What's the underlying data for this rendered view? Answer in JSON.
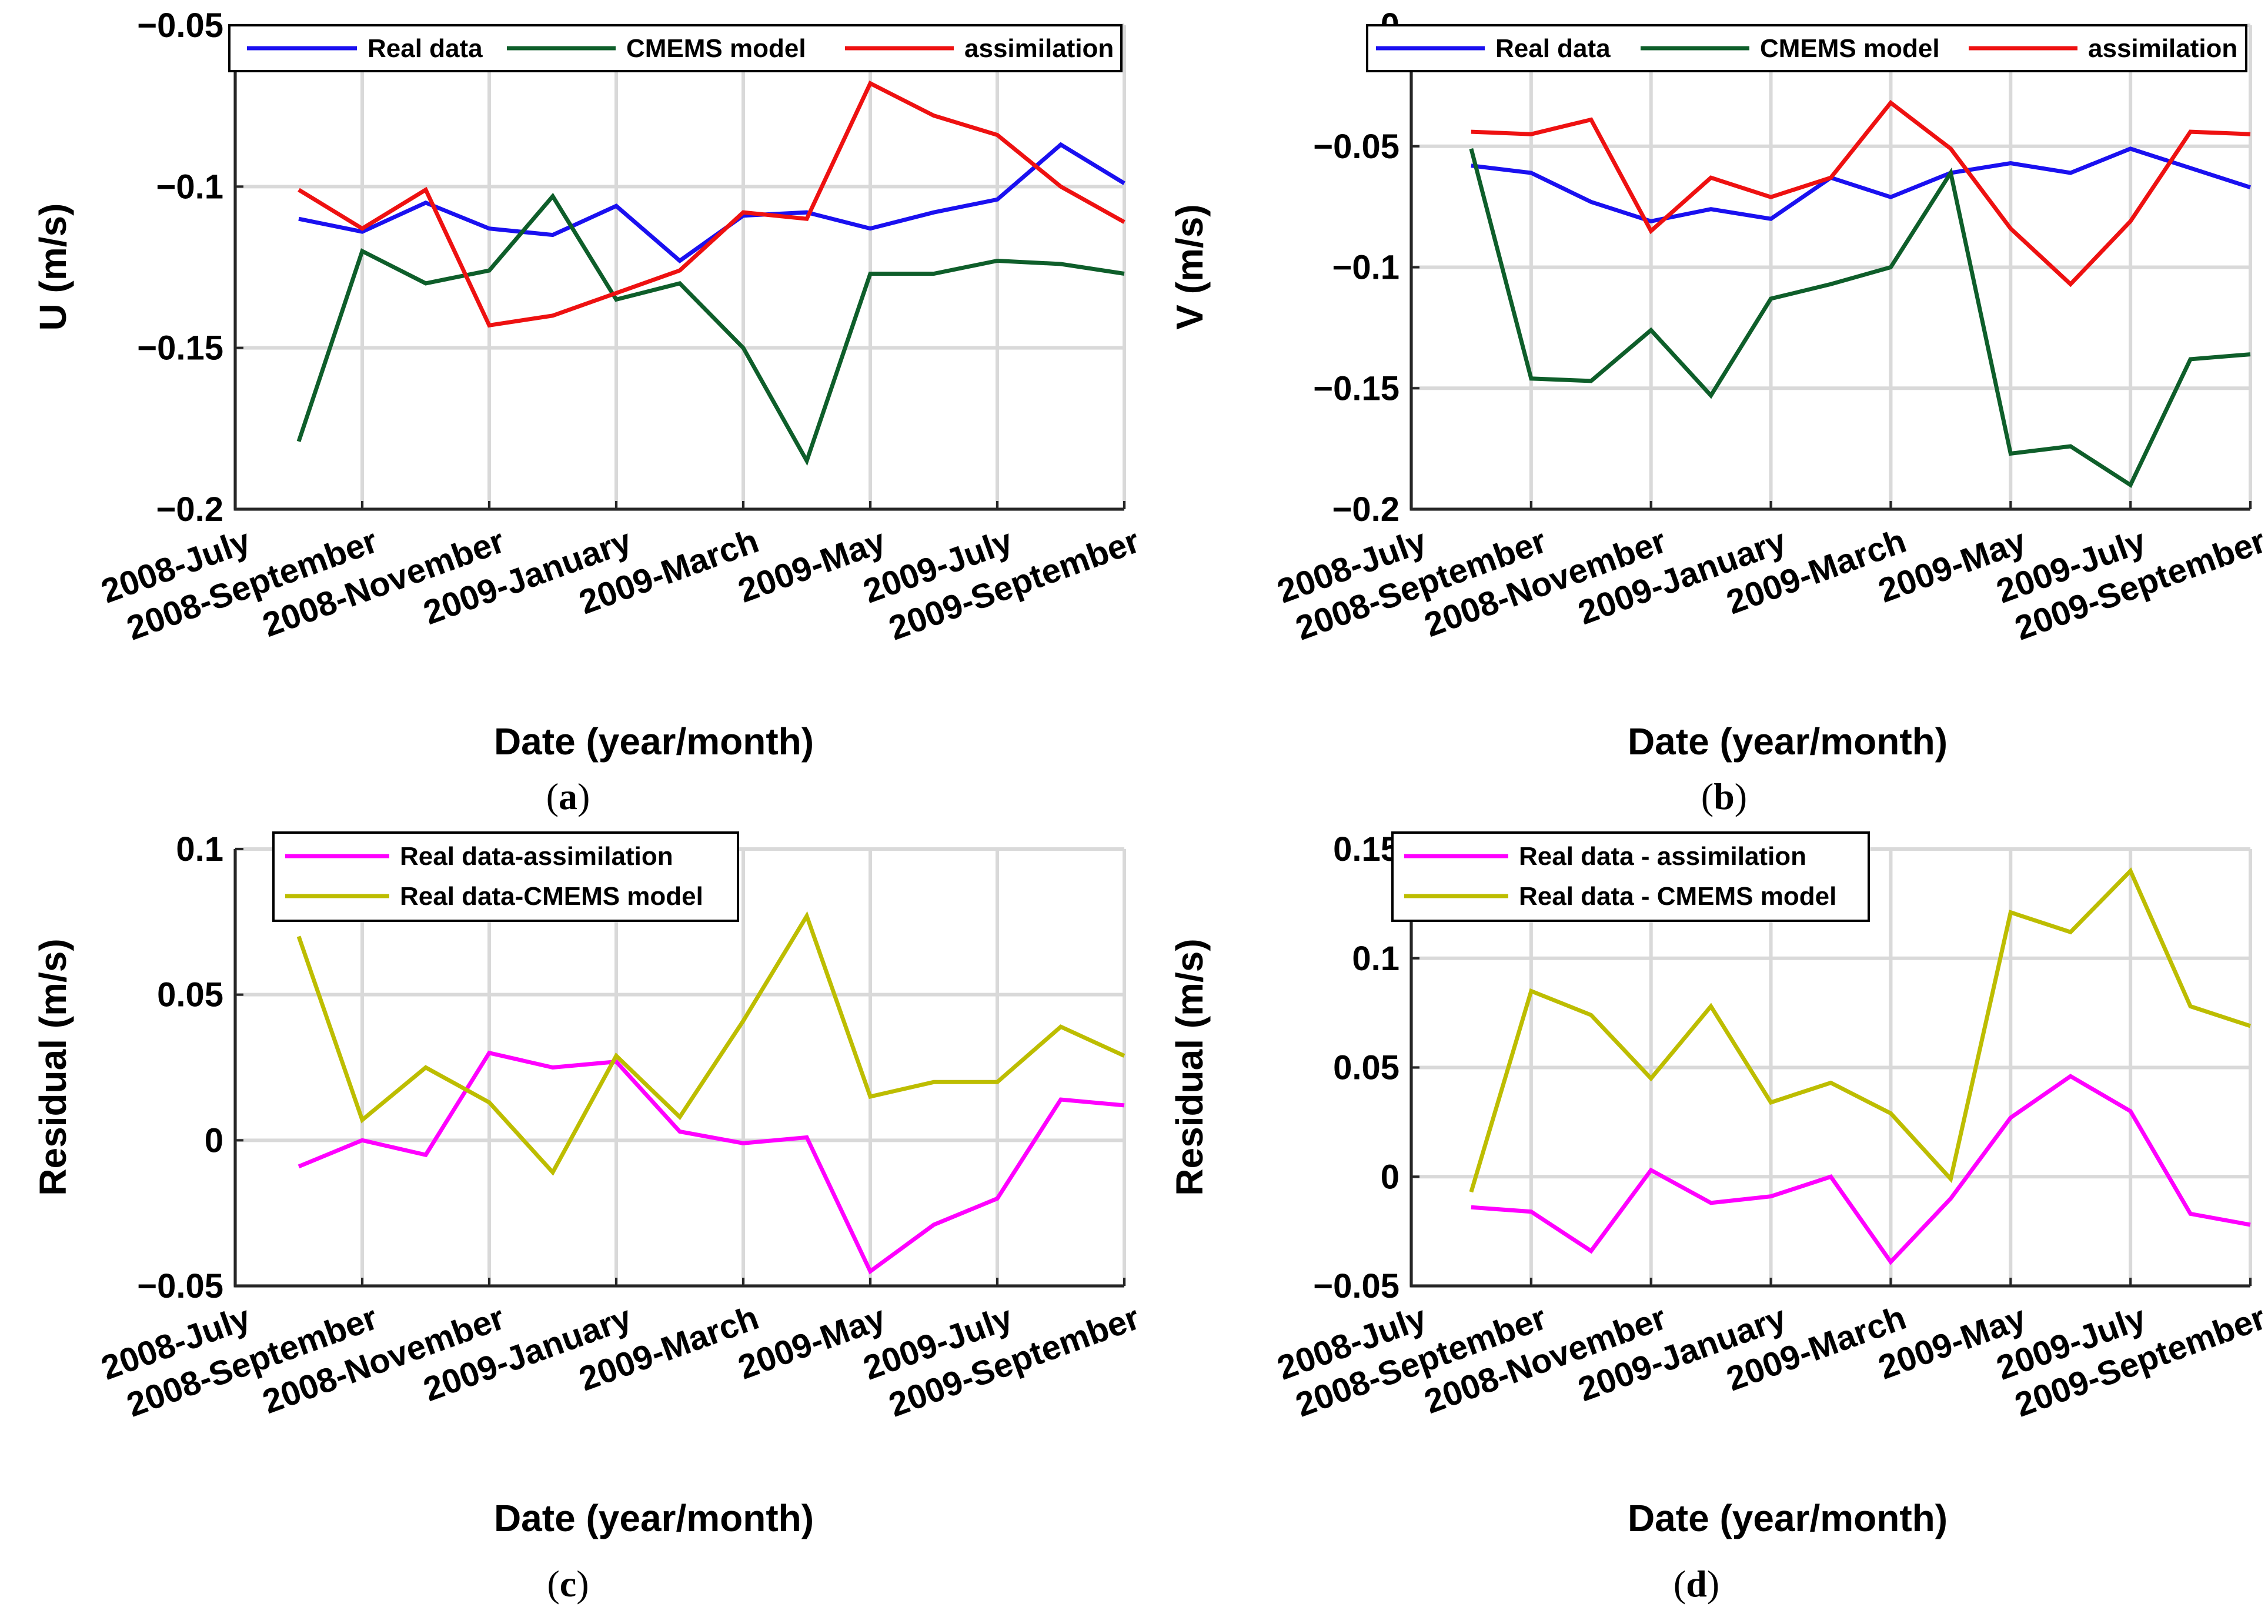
{
  "chart_data": [
    {
      "panel": "a",
      "type": "line",
      "caption": "a",
      "xlabel": "Date (year/month)",
      "ylabel": "U (m/s)",
      "ylim": [
        -0.2,
        -0.05
      ],
      "y_ticks": [
        -0.2,
        -0.15,
        -0.1,
        -0.05
      ],
      "y_tick_labels": [
        "−0.2",
        "−0.15",
        "−0.1",
        "−0.05"
      ],
      "x_ticks": [
        0,
        2,
        4,
        6,
        8,
        10,
        12,
        14
      ],
      "x_tick_labels": [
        "2008-July",
        "2008-September",
        "2008-November",
        "2009-January",
        "2009-March",
        "2009-May",
        "2009-July",
        "2009-September"
      ],
      "xlim": [
        0,
        14
      ],
      "x": [
        1,
        2,
        3,
        4,
        5,
        6,
        7,
        8,
        9,
        10,
        11,
        12,
        13,
        14
      ],
      "legend_position": "top",
      "series": [
        {
          "name": "Real data",
          "color": "#1a10f0",
          "values": [
            -0.11,
            -0.114,
            -0.105,
            -0.113,
            -0.115,
            -0.106,
            -0.123,
            -0.109,
            -0.108,
            -0.113,
            -0.108,
            -0.104,
            -0.087,
            -0.099
          ]
        },
        {
          "name": "CMEMS  model",
          "color": "#0e5e2a",
          "values": [
            -0.179,
            -0.12,
            -0.13,
            -0.126,
            -0.103,
            -0.135,
            -0.13,
            -0.15,
            -0.185,
            -0.127,
            -0.127,
            -0.123,
            -0.124,
            -0.127
          ]
        },
        {
          "name": "assimilation",
          "color": "#ee1111",
          "values": [
            -0.101,
            -0.113,
            -0.101,
            -0.143,
            -0.14,
            -0.133,
            -0.126,
            -0.108,
            -0.11,
            -0.068,
            -0.078,
            -0.084,
            -0.1,
            -0.111
          ]
        }
      ]
    },
    {
      "panel": "b",
      "type": "line",
      "caption": "b",
      "xlabel": "Date (year/month)",
      "ylabel": "V (m/s)",
      "ylim": [
        -0.2,
        0
      ],
      "y_ticks": [
        -0.2,
        -0.15,
        -0.1,
        -0.05,
        0
      ],
      "y_tick_labels": [
        "−0.2",
        "−0.15",
        "−0.1",
        "−0.05",
        "0"
      ],
      "x_ticks": [
        0,
        2,
        4,
        6,
        8,
        10,
        12,
        14
      ],
      "x_tick_labels": [
        "2008-July",
        "2008-September",
        "2008-November",
        "2009-January",
        "2009-March",
        "2009-May",
        "2009-July",
        "2009-September"
      ],
      "xlim": [
        0,
        14
      ],
      "x": [
        1,
        2,
        3,
        4,
        5,
        6,
        7,
        8,
        9,
        10,
        11,
        12,
        13,
        14
      ],
      "legend_position": "top",
      "series": [
        {
          "name": "Real data",
          "color": "#1a10f0",
          "values": [
            -0.058,
            -0.061,
            -0.073,
            -0.081,
            -0.076,
            -0.08,
            -0.063,
            -0.071,
            -0.061,
            -0.057,
            -0.061,
            -0.051,
            -0.059,
            -0.067
          ]
        },
        {
          "name": "CMEMS model",
          "color": "#0e5e2a",
          "values": [
            -0.051,
            -0.146,
            -0.147,
            -0.126,
            -0.153,
            -0.113,
            -0.107,
            -0.1,
            -0.061,
            -0.177,
            -0.174,
            -0.19,
            -0.138,
            -0.136
          ]
        },
        {
          "name": "assimilation",
          "color": "#ee1111",
          "values": [
            -0.044,
            -0.045,
            -0.039,
            -0.085,
            -0.063,
            -0.071,
            -0.063,
            -0.032,
            -0.051,
            -0.084,
            -0.107,
            -0.081,
            -0.044,
            -0.045
          ]
        }
      ]
    },
    {
      "panel": "c",
      "type": "line",
      "caption": "c",
      "xlabel": "Date (year/month)",
      "ylabel": "Residual (m/s)",
      "ylim": [
        -0.05,
        0.1
      ],
      "y_ticks": [
        -0.05,
        0,
        0.05,
        0.1
      ],
      "y_tick_labels": [
        "−0.05",
        "0",
        "0.05",
        "0.1"
      ],
      "x_ticks": [
        0,
        2,
        4,
        6,
        8,
        10,
        12,
        14
      ],
      "x_tick_labels": [
        "2008-July",
        "2008-September",
        "2008-November",
        "2009-January",
        "2009-March",
        "2009-May",
        "2009-July",
        "2009-September"
      ],
      "xlim": [
        0,
        14
      ],
      "x": [
        1,
        2,
        3,
        4,
        5,
        6,
        7,
        8,
        9,
        10,
        11,
        12,
        13,
        14
      ],
      "legend_position": "top",
      "series": [
        {
          "name": "Real data-assimilation",
          "color": "#ff00ff",
          "values": [
            -0.009,
            0.0,
            -0.005,
            0.03,
            0.025,
            0.027,
            0.003,
            -0.001,
            0.001,
            -0.045,
            -0.029,
            -0.02,
            0.014,
            0.012
          ]
        },
        {
          "name": "Real data-CMEMS model",
          "color": "#bdbd00",
          "values": [
            0.07,
            0.007,
            0.025,
            0.013,
            -0.011,
            0.029,
            0.008,
            0.041,
            0.077,
            0.015,
            0.02,
            0.02,
            0.039,
            0.029
          ]
        }
      ]
    },
    {
      "panel": "d",
      "type": "line",
      "caption": "d",
      "xlabel": "Date (year/month)",
      "ylabel": "Residual (m/s)",
      "ylim": [
        -0.05,
        0.15
      ],
      "y_ticks": [
        -0.05,
        0,
        0.05,
        0.1,
        0.15
      ],
      "y_tick_labels": [
        "−0.05",
        "0",
        "0.05",
        "0.1",
        "0.15"
      ],
      "x_ticks": [
        0,
        2,
        4,
        6,
        8,
        10,
        12,
        14
      ],
      "x_tick_labels": [
        "2008-July",
        "2008-September",
        "2008-November",
        "2009-January",
        "2009-March",
        "2009-May",
        "2009-July",
        "2009-September"
      ],
      "xlim": [
        0,
        14
      ],
      "x": [
        1,
        2,
        3,
        4,
        5,
        6,
        7,
        8,
        9,
        10,
        11,
        12,
        13,
        14
      ],
      "legend_position": "top",
      "series": [
        {
          "name": "Real data - assimilation",
          "color": "#ff00ff",
          "values": [
            -0.014,
            -0.016,
            -0.034,
            0.003,
            -0.012,
            -0.009,
            0.0,
            -0.039,
            -0.01,
            0.027,
            0.046,
            0.03,
            -0.017,
            -0.022
          ]
        },
        {
          "name": "Real data - CMEMS model",
          "color": "#bdbd00",
          "values": [
            -0.007,
            0.085,
            0.074,
            0.045,
            0.078,
            0.034,
            0.043,
            0.029,
            -0.001,
            0.121,
            0.112,
            0.14,
            0.078,
            0.069
          ]
        }
      ]
    }
  ]
}
